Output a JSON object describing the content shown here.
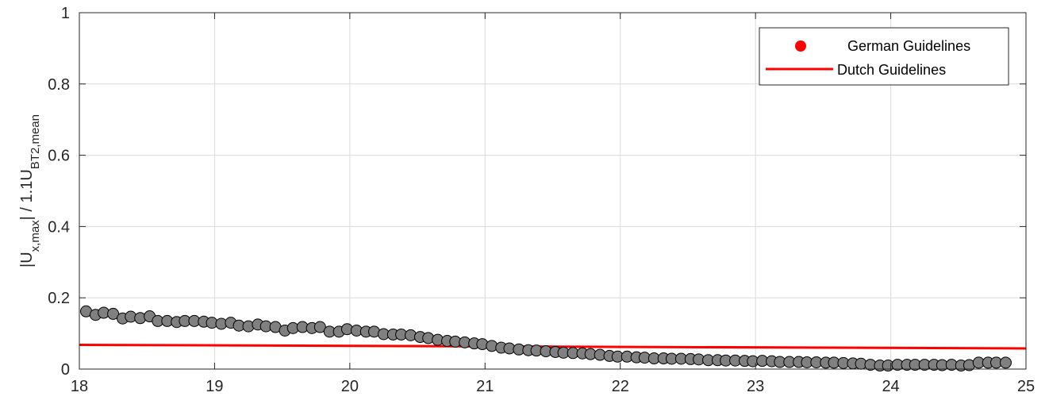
{
  "chart_data": {
    "type": "scatter",
    "xlim": [
      18,
      25
    ],
    "ylim": [
      0,
      1
    ],
    "xticks": [
      18,
      19,
      20,
      21,
      22,
      23,
      24,
      25
    ],
    "yticks": [
      0,
      0.2,
      0.4,
      0.6,
      0.8,
      1
    ],
    "ytick_labels": [
      "0",
      "0.2",
      "0.4",
      "0.6",
      "0.8",
      "1"
    ],
    "xlabel": "",
    "ylabel": {
      "part1": "|U",
      "sub1": "x,max",
      "part2": "| / 1.1U",
      "sub2": "BT2,mean"
    },
    "grid": true,
    "legend_position": "top-right",
    "series": [
      {
        "name": "German Guidelines",
        "kind": "markers",
        "color": "#ff0000",
        "marker_fill": "#808080",
        "marker_edge": "#000000",
        "x": [
          18.05,
          18.12,
          18.18,
          18.25,
          18.32,
          18.38,
          18.45,
          18.52,
          18.58,
          18.65,
          18.72,
          18.78,
          18.85,
          18.92,
          18.98,
          19.05,
          19.12,
          19.18,
          19.25,
          19.32,
          19.38,
          19.45,
          19.52,
          19.58,
          19.65,
          19.72,
          19.78,
          19.85,
          19.92,
          19.98,
          20.05,
          20.12,
          20.18,
          20.25,
          20.32,
          20.38,
          20.45,
          20.52,
          20.58,
          20.65,
          20.72,
          20.78,
          20.85,
          20.92,
          20.98,
          21.05,
          21.12,
          21.18,
          21.25,
          21.32,
          21.38,
          21.45,
          21.52,
          21.58,
          21.65,
          21.72,
          21.78,
          21.85,
          21.92,
          21.98,
          22.05,
          22.12,
          22.18,
          22.25,
          22.32,
          22.38,
          22.45,
          22.52,
          22.58,
          22.65,
          22.72,
          22.78,
          22.85,
          22.92,
          22.98,
          23.05,
          23.12,
          23.18,
          23.25,
          23.32,
          23.38,
          23.45,
          23.52,
          23.58,
          23.65,
          23.72,
          23.78,
          23.85,
          23.92,
          23.98,
          24.05,
          24.12,
          24.18,
          24.25,
          24.32,
          24.38,
          24.45,
          24.52,
          24.58,
          24.65,
          24.72,
          24.78,
          24.85
        ],
        "y": [
          0.162,
          0.152,
          0.158,
          0.155,
          0.142,
          0.147,
          0.143,
          0.148,
          0.135,
          0.135,
          0.132,
          0.135,
          0.135,
          0.133,
          0.13,
          0.127,
          0.13,
          0.122,
          0.12,
          0.125,
          0.12,
          0.118,
          0.108,
          0.115,
          0.118,
          0.115,
          0.118,
          0.105,
          0.105,
          0.112,
          0.108,
          0.105,
          0.105,
          0.098,
          0.097,
          0.097,
          0.095,
          0.09,
          0.087,
          0.082,
          0.079,
          0.077,
          0.075,
          0.072,
          0.07,
          0.065,
          0.06,
          0.058,
          0.055,
          0.053,
          0.052,
          0.05,
          0.048,
          0.046,
          0.045,
          0.044,
          0.042,
          0.04,
          0.037,
          0.035,
          0.035,
          0.033,
          0.032,
          0.03,
          0.03,
          0.029,
          0.029,
          0.028,
          0.027,
          0.025,
          0.025,
          0.024,
          0.024,
          0.023,
          0.022,
          0.023,
          0.022,
          0.02,
          0.02,
          0.02,
          0.019,
          0.019,
          0.018,
          0.018,
          0.017,
          0.016,
          0.015,
          0.012,
          0.01,
          0.01,
          0.012,
          0.012,
          0.012,
          0.012,
          0.012,
          0.011,
          0.012,
          0.01,
          0.011,
          0.018,
          0.018,
          0.018,
          0.018
        ]
      },
      {
        "name": "Dutch Guidelines",
        "kind": "line",
        "color": "#ff0000",
        "x": [
          18,
          25
        ],
        "y": [
          0.068,
          0.058
        ]
      }
    ]
  },
  "colors": {
    "axis": "#262626",
    "grid": "#dcdcdc",
    "background": "#ffffff"
  }
}
